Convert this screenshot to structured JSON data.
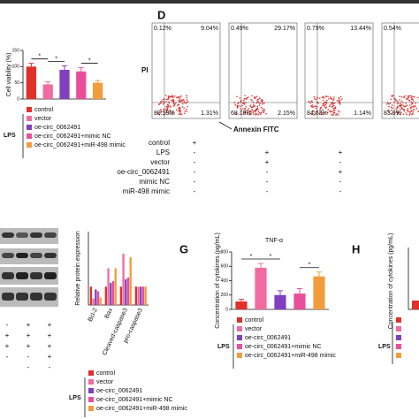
{
  "viability": {
    "y_label": "Cell viability (%)",
    "ylim": [
      0,
      150
    ],
    "yticks": [
      0,
      50,
      100,
      150
    ],
    "values": [
      100,
      45,
      90,
      85,
      50
    ],
    "errors": [
      10,
      8,
      12,
      12,
      7
    ],
    "colors": [
      "#e0302a",
      "#f06ca0",
      "#8040c0",
      "#e94e9b",
      "#f39c3c"
    ],
    "sig": [
      "*",
      "*",
      "*"
    ],
    "legend": [
      "control",
      "vector",
      "oe-circ_0062491",
      "oe-circ_0062491+mimic NC",
      "oe-circ_0062491+miR-498 mimic"
    ],
    "lps": "LPS"
  },
  "flow": {
    "letter": "D",
    "y_axis": "PI",
    "x_axis": "Annexin FITC",
    "plots": [
      [
        "0.12%",
        "9.04%",
        "89.59%",
        "1.31%"
      ],
      [
        "0.49%",
        "29.17%",
        "68.19%",
        "2.15%"
      ],
      [
        "0.79%",
        "13.44%",
        "84.63%",
        "1.14%"
      ],
      [
        "0.54%",
        "",
        "83.9%",
        ""
      ]
    ],
    "table": [
      [
        "control",
        "+",
        "",
        ""
      ],
      [
        "LPS",
        "-",
        "+",
        "+"
      ],
      [
        "vector",
        "-",
        "+",
        "-"
      ],
      [
        "oe-circ_0062491",
        "-",
        "-",
        "+"
      ],
      [
        "mimic NC",
        "-",
        "-",
        "-"
      ],
      [
        "miR-498 mimic",
        "-",
        "-",
        "-"
      ]
    ]
  },
  "blot_table": [
    [
      "-",
      "+",
      "+"
    ],
    [
      "+",
      "+",
      "+"
    ],
    [
      "+",
      "+",
      "+"
    ],
    [
      "-",
      "-",
      "+"
    ],
    [
      "",
      "-",
      "-"
    ]
  ],
  "protein": {
    "y_label": "Relative protein expression",
    "ylim": [
      0,
      4
    ],
    "categories": [
      "Bcl-2",
      "Bax",
      "Cleaved-caspase3",
      "pro-caspase3"
    ],
    "series": [
      {
        "name": "control",
        "color": "#e0302a",
        "values": [
          1.0,
          1.0,
          1.0,
          1.0
        ]
      },
      {
        "name": "vector",
        "color": "#f06ca0",
        "values": [
          0.35,
          2.0,
          2.8,
          1.0
        ]
      },
      {
        "name": "oe-circ_0062491",
        "color": "#8040c0",
        "values": [
          0.85,
          1.2,
          1.4,
          1.0
        ]
      },
      {
        "name": "oe-circ_0062491+mimic NC",
        "color": "#e94e9b",
        "values": [
          0.75,
          1.3,
          1.5,
          1.0
        ]
      },
      {
        "name": "oe-circ_0062491+miR-498 mimic",
        "color": "#f39c3c",
        "values": [
          0.4,
          2.0,
          2.6,
          1.0
        ]
      }
    ],
    "lps": "LPS"
  },
  "tnf": {
    "letter": "G",
    "title": "TNF-α",
    "y_label": "Concentration of cytokines (pg/mL)",
    "ylim": [
      0,
      800
    ],
    "yticks": [
      0,
      200,
      400,
      600,
      800
    ],
    "values": [
      110,
      580,
      200,
      220,
      460
    ],
    "errors": [
      30,
      60,
      60,
      70,
      60
    ],
    "colors": [
      "#e0302a",
      "#f06ca0",
      "#8040c0",
      "#e94e9b",
      "#f39c3c"
    ],
    "sig": [
      "*",
      "*",
      "*"
    ],
    "legend": [
      "control",
      "vector",
      "oe-circ_0062491",
      "oe-circ_0062491+mimic NC",
      "oe-circ_0062491+miR-498 mimic"
    ],
    "lps": "LPS"
  },
  "panel_h": {
    "letter": "H",
    "y_label": "Concentration of cytokines (pg/mL)",
    "lps": "LPS"
  }
}
